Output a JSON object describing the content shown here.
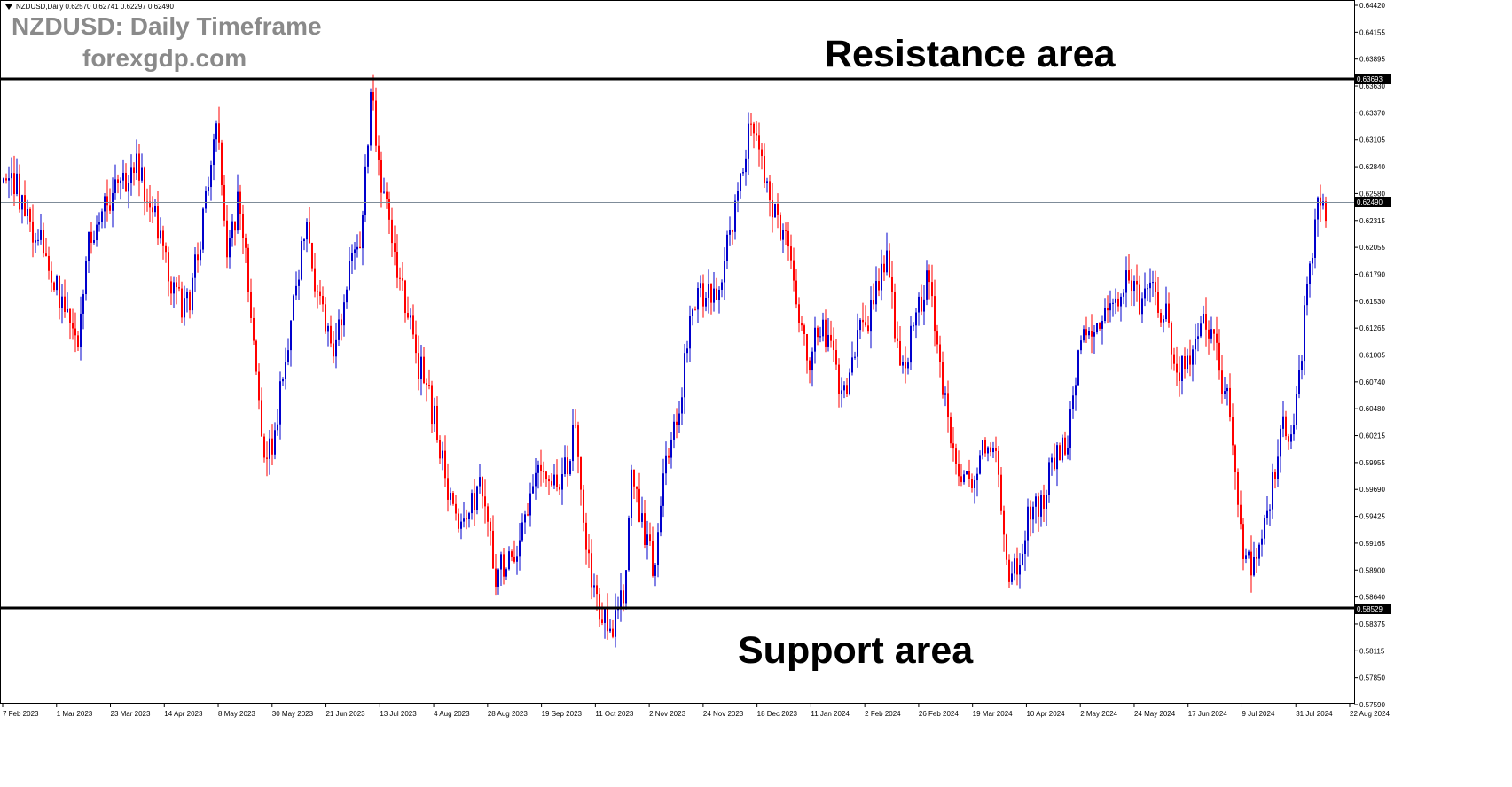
{
  "header": {
    "symbol_info": "NZDUSD,Daily  0.62570 0.62741 0.62297 0.62490",
    "title": "NZDUSD: Daily Timeframe",
    "subtitle": "forexgdp.com"
  },
  "chart_data": {
    "type": "candlestick",
    "symbol": "NZDUSD",
    "timeframe": "Daily",
    "ohlc_current": {
      "open": 0.6257,
      "high": 0.62741,
      "low": 0.62297,
      "close": 0.6249
    },
    "current_price_label": "0.62490",
    "annotations": [
      {
        "text": "Resistance area",
        "price": 0.63693,
        "label": "0.63693"
      },
      {
        "text": "Support area",
        "price": 0.58529,
        "label": "0.58529"
      }
    ],
    "y_ticks": [
      "0.64420",
      "0.64155",
      "0.63895",
      "0.63630",
      "0.63370",
      "0.63105",
      "0.62840",
      "0.62580",
      "0.62315",
      "0.62055",
      "0.61790",
      "0.61530",
      "0.61265",
      "0.61005",
      "0.60740",
      "0.60480",
      "0.60215",
      "0.59955",
      "0.59690",
      "0.59425",
      "0.59165",
      "0.58900",
      "0.58640",
      "0.58375",
      "0.58115",
      "0.57850",
      "0.57590"
    ],
    "x_ticks": [
      "7 Feb 2023",
      "1 Mar 2023",
      "23 Mar 2023",
      "14 Apr 2023",
      "8 May 2023",
      "30 May 2023",
      "21 Jun 2023",
      "13 Jul 2023",
      "4 Aug 2023",
      "28 Aug 2023",
      "19 Sep 2023",
      "11 Oct 2023",
      "2 Nov 2023",
      "24 Nov 2023",
      "18 Dec 2023",
      "11 Jan 2024",
      "2 Feb 2024",
      "26 Feb 2024",
      "19 Mar 2024",
      "10 Apr 2024",
      "2 May 2024",
      "24 May 2024",
      "17 Jun 2024",
      "9 Jul 2024",
      "31 Jul 2024",
      "22 Aug 2024"
    ],
    "ylim": [
      0.5742,
      0.6449
    ],
    "price_path": [
      [
        0,
        0.626
      ],
      [
        12,
        0.629
      ],
      [
        22,
        0.625
      ],
      [
        48,
        0.6205
      ],
      [
        72,
        0.614
      ],
      [
        86,
        0.6098
      ],
      [
        100,
        0.621
      ],
      [
        125,
        0.625
      ],
      [
        155,
        0.629
      ],
      [
        172,
        0.624
      ],
      [
        190,
        0.618
      ],
      [
        210,
        0.614
      ],
      [
        228,
        0.622
      ],
      [
        245,
        0.633
      ],
      [
        256,
        0.62
      ],
      [
        270,
        0.6255
      ],
      [
        280,
        0.617
      ],
      [
        292,
        0.604
      ],
      [
        302,
        0.5985
      ],
      [
        318,
        0.6065
      ],
      [
        332,
        0.6165
      ],
      [
        345,
        0.6225
      ],
      [
        360,
        0.615
      ],
      [
        378,
        0.609
      ],
      [
        392,
        0.618
      ],
      [
        405,
        0.619
      ],
      [
        418,
        0.636
      ],
      [
        430,
        0.627
      ],
      [
        442,
        0.621
      ],
      [
        455,
        0.616
      ],
      [
        470,
        0.609
      ],
      [
        488,
        0.604
      ],
      [
        505,
        0.5955
      ],
      [
        525,
        0.5925
      ],
      [
        540,
        0.596
      ],
      [
        560,
        0.587
      ],
      [
        575,
        0.5895
      ],
      [
        592,
        0.592
      ],
      [
        612,
        0.5985
      ],
      [
        628,
        0.5955
      ],
      [
        650,
        0.602
      ],
      [
        660,
        0.5915
      ],
      [
        672,
        0.5845
      ],
      [
        688,
        0.581
      ],
      [
        702,
        0.5845
      ],
      [
        712,
        0.5965
      ],
      [
        725,
        0.592
      ],
      [
        738,
        0.5875
      ],
      [
        750,
        0.598
      ],
      [
        768,
        0.606
      ],
      [
        785,
        0.616
      ],
      [
        805,
        0.615
      ],
      [
        818,
        0.619
      ],
      [
        832,
        0.627
      ],
      [
        848,
        0.634
      ],
      [
        860,
        0.6285
      ],
      [
        875,
        0.624
      ],
      [
        895,
        0.618
      ],
      [
        910,
        0.609
      ],
      [
        930,
        0.6125
      ],
      [
        950,
        0.605
      ],
      [
        968,
        0.611
      ],
      [
        985,
        0.615
      ],
      [
        1000,
        0.619
      ],
      [
        1015,
        0.608
      ],
      [
        1030,
        0.612
      ],
      [
        1045,
        0.617
      ],
      [
        1060,
        0.609
      ],
      [
        1075,
        0.5995
      ],
      [
        1095,
        0.595
      ],
      [
        1110,
        0.6
      ],
      [
        1125,
        0.598
      ],
      [
        1135,
        0.5875
      ],
      [
        1148,
        0.588
      ],
      [
        1162,
        0.594
      ],
      [
        1175,
        0.595
      ],
      [
        1190,
        0.5995
      ],
      [
        1205,
        0.601
      ],
      [
        1220,
        0.611
      ],
      [
        1240,
        0.613
      ],
      [
        1258,
        0.614
      ],
      [
        1270,
        0.618
      ],
      [
        1285,
        0.615
      ],
      [
        1300,
        0.616
      ],
      [
        1315,
        0.613
      ],
      [
        1330,
        0.608
      ],
      [
        1345,
        0.61
      ],
      [
        1358,
        0.613
      ],
      [
        1372,
        0.61
      ],
      [
        1385,
        0.604
      ],
      [
        1395,
        0.596
      ],
      [
        1405,
        0.588
      ],
      [
        1415,
        0.5885
      ],
      [
        1425,
        0.5925
      ],
      [
        1435,
        0.5965
      ],
      [
        1445,
        0.603
      ],
      [
        1455,
        0.6
      ],
      [
        1465,
        0.608
      ],
      [
        1475,
        0.617
      ],
      [
        1485,
        0.6245
      ],
      [
        1497,
        0.6249
      ]
    ]
  }
}
